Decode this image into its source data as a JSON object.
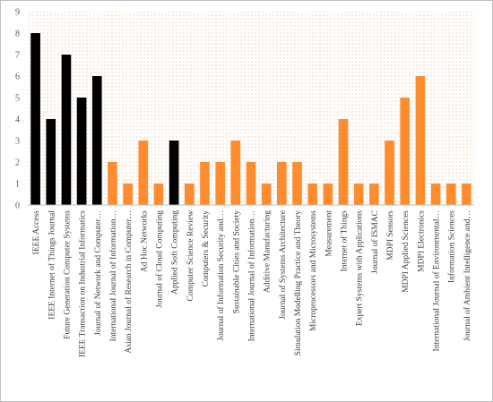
{
  "chart_data": {
    "type": "bar",
    "title": "",
    "xlabel": "",
    "ylabel": "",
    "ylim": [
      0,
      9
    ],
    "yticks": [
      0,
      1,
      2,
      3,
      4,
      5,
      6,
      7,
      8,
      9
    ],
    "grid": false,
    "legend": "none",
    "plot_background": "dotted pattern",
    "categories": [
      "IEEE Access",
      "IEEE Internet of Things Journal",
      "Future Generation Computer Systems",
      "IEEE Transaction on Industrial Informatics",
      "Journal of Network and Computer…",
      "International Journal of Information…",
      "Asian Journal of Research in Computer…",
      "Ad Hoc Networks",
      "Journal of Cloud Computing",
      "Applied Soft Computing",
      "Computer Science Review",
      "Computers & Security",
      "Journal of Information Security and…",
      "Sustainable Cities and Society",
      "International Journal of Information…",
      "Additive Manufacturing",
      "Journal of Systems Architecture",
      "Simulation Modelling Practice and Theory",
      "Microprocessors and Microsystems",
      "Measurement",
      "Internet of Things",
      "Expert Systems with Applications",
      "Journal of ISMAC",
      "MDPI Sensors",
      "MDPI Applied Sciences",
      "MDPI Electronics",
      "International Journal of Environmental…",
      "Information Sciences",
      "Journal of Ambient Intelligence and…"
    ],
    "values": [
      8,
      4,
      7,
      5,
      6,
      2,
      1,
      3,
      1,
      3,
      1,
      2,
      2,
      3,
      2,
      1,
      2,
      2,
      1,
      1,
      4,
      1,
      1,
      3,
      5,
      6,
      1,
      1,
      1
    ],
    "bar_colors": [
      "#000000",
      "#000000",
      "#000000",
      "#000000",
      "#000000",
      "#ff8c2f",
      "#ff8c2f",
      "#ff8c2f",
      "#ff8c2f",
      "#000000",
      "#ff8c2f",
      "#ff8c2f",
      "#ff8c2f",
      "#ff8c2f",
      "#ff8c2f",
      "#ff8c2f",
      "#ff8c2f",
      "#ff8c2f",
      "#ff8c2f",
      "#ff8c2f",
      "#ff8c2f",
      "#ff8c2f",
      "#ff8c2f",
      "#ff8c2f",
      "#ff8c2f",
      "#ff8c2f",
      "#ff8c2f",
      "#ff8c2f",
      "#ff8c2f"
    ],
    "colors": {
      "black_bar": "#000000",
      "orange_bar": "#ff8c2f",
      "dot_pattern": "#f4c9a6",
      "axis": "#bfbfbf",
      "text": "#404040"
    }
  }
}
